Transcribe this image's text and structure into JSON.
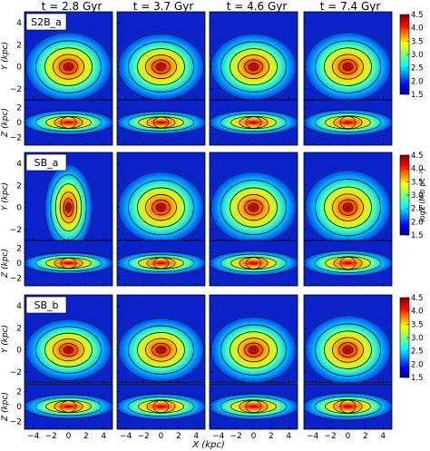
{
  "figure": {
    "column_titles": [
      "t = 2.8 Gyr",
      "t = 3.7 Gyr",
      "t = 4.6 Gyr",
      "t = 7.4 Gyr"
    ],
    "models": [
      "S2B_a",
      "SB_a",
      "SB_b"
    ],
    "face_on_ylabel": "Y (kpc)",
    "edge_on_ylabel": "Z (kpc)",
    "xlabel": "X (kpc)",
    "colorbar_label": "logΣ (M⊙ pc⁻²)",
    "colorbar_ticks": [
      "4.5",
      "4.0",
      "3.5",
      "3.0",
      "2.5",
      "2.0",
      "1.5"
    ],
    "colorbar_range": [
      1.5,
      4.5
    ],
    "colormap": "jet",
    "contour_color": "#000000"
  },
  "chart_data": {
    "type": "heatmap",
    "x_range": [
      -5,
      5
    ],
    "face_on_y_range": [
      -3,
      5
    ],
    "edge_on_z_range": [
      -3,
      3
    ],
    "x_tick_labels": [
      "−4",
      "−2",
      "0",
      "2",
      "4"
    ],
    "face_on_y_tick_labels": [
      "4",
      "2",
      "0",
      "−2"
    ],
    "edge_on_z_tick_labels": [
      "2",
      "0",
      "−2"
    ],
    "axis_ticks": {
      "x": [
        -4,
        -2,
        0,
        2,
        4
      ],
      "face_on_y": [
        4,
        2,
        0,
        -2
      ],
      "edge_on_z": [
        2,
        0,
        -2
      ]
    },
    "face_on_center": [
      0,
      0
    ],
    "panels": [
      {
        "model": "S2B_a",
        "time": "t = 2.8 Gyr",
        "face_on_elongation": 1.25,
        "edge_on_flatness": 0.32
      },
      {
        "model": "S2B_a",
        "time": "t = 3.7 Gyr",
        "face_on_elongation": 1.3,
        "edge_on_flatness": 0.3
      },
      {
        "model": "S2B_a",
        "time": "t = 4.6 Gyr",
        "face_on_elongation": 1.3,
        "edge_on_flatness": 0.32
      },
      {
        "model": "S2B_a",
        "time": "t = 7.4 Gyr",
        "face_on_elongation": 1.25,
        "edge_on_flatness": 0.34
      },
      {
        "model": "SB_a",
        "time": "t = 2.8 Gyr",
        "face_on_elongation": 0.55,
        "edge_on_flatness": 0.28
      },
      {
        "model": "SB_a",
        "time": "t = 3.7 Gyr",
        "face_on_elongation": 1.2,
        "edge_on_flatness": 0.3
      },
      {
        "model": "SB_a",
        "time": "t = 4.6 Gyr",
        "face_on_elongation": 1.2,
        "edge_on_flatness": 0.32
      },
      {
        "model": "SB_a",
        "time": "t = 7.4 Gyr",
        "face_on_elongation": 1.15,
        "edge_on_flatness": 0.34
      },
      {
        "model": "SB_b",
        "time": "t = 2.8 Gyr",
        "face_on_elongation": 1.4,
        "edge_on_flatness": 0.32
      },
      {
        "model": "SB_b",
        "time": "t = 3.7 Gyr",
        "face_on_elongation": 1.35,
        "edge_on_flatness": 0.34
      },
      {
        "model": "SB_b",
        "time": "t = 4.6 Gyr",
        "face_on_elongation": 1.3,
        "edge_on_flatness": 0.34
      },
      {
        "model": "SB_b",
        "time": "t = 7.4 Gyr",
        "face_on_elongation": 1.25,
        "edge_on_flatness": 0.36
      }
    ]
  }
}
